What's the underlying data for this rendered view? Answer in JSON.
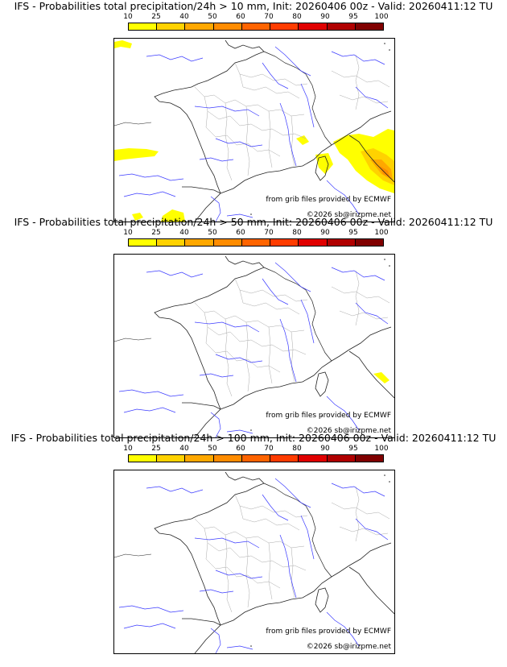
{
  "legend": {
    "labels": [
      "10",
      "25",
      "40",
      "50",
      "60",
      "70",
      "80",
      "90",
      "95",
      "100"
    ],
    "colors": [
      "#ffff00",
      "#ffd200",
      "#ffa800",
      "#ff8c00",
      "#ff6400",
      "#ff3c00",
      "#e00000",
      "#b00000",
      "#800000",
      "#600000"
    ]
  },
  "panels": [
    {
      "title": "IFS - Probabilities total precipitation/24h > 10 mm, Init: 20260406 00z - Valid: 20260411:12 TU",
      "source_note": "from grib files provided by ECMWF",
      "copyright": "©2026 sb@irizpme.net"
    },
    {
      "title": "IFS - Probabilities total precipitation/24h > 50 mm, Init: 20260406 00z - Valid: 20260411:12 TU",
      "source_note": "from grib files provided by ECMWF",
      "copyright": "©2026 sb@irizpme.net"
    },
    {
      "title": "IFS - Probabilities total precipitation/24h > 100 mm, Init: 20260406 00z - Valid: 20260411:12 TU",
      "source_note": "from grib files provided by ECMWF",
      "copyright": "©2026 sb@irizpme.net"
    }
  ]
}
